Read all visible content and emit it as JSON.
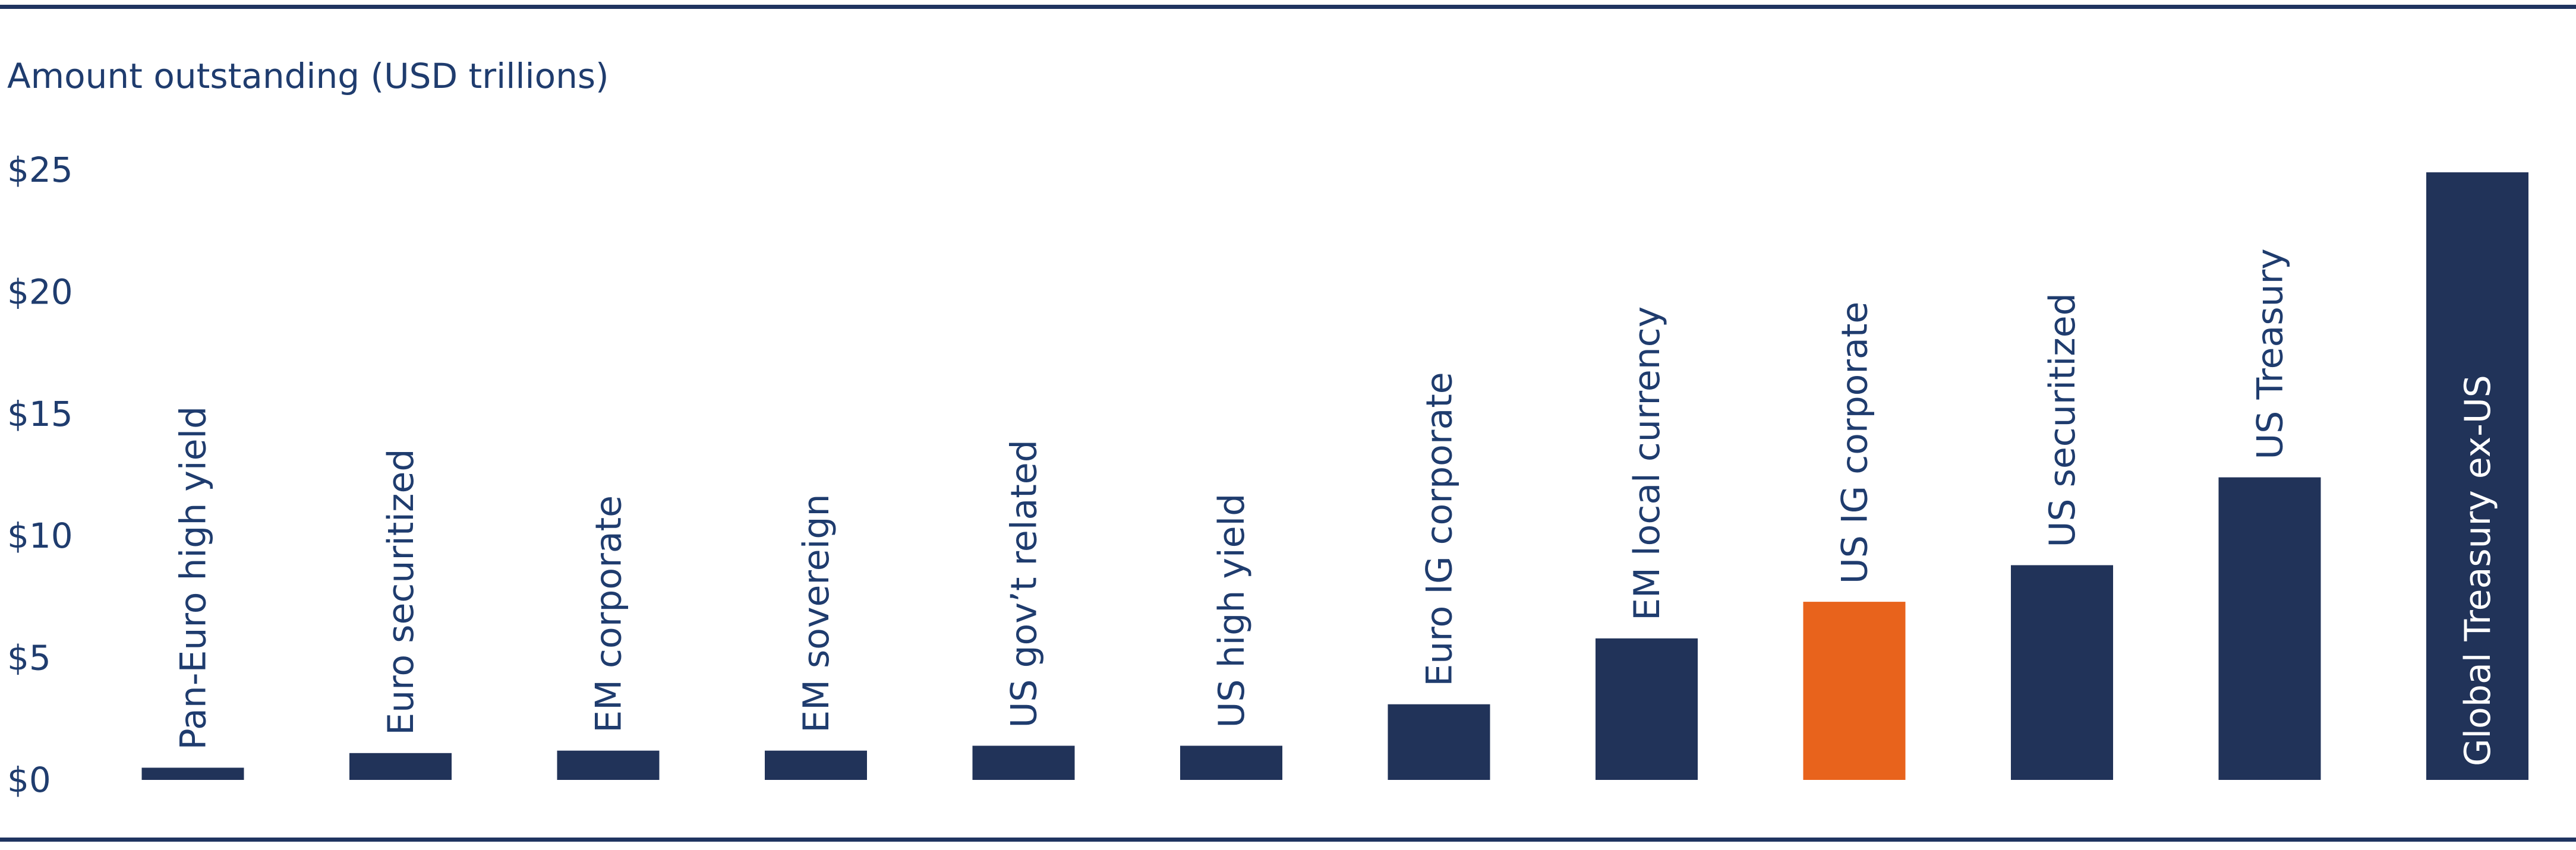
{
  "chart_data": {
    "type": "bar",
    "ylabel": "Amount outstanding (USD trillions)",
    "ylim": [
      0,
      25
    ],
    "yticks": [
      "$0",
      "$5",
      "$10",
      "$15",
      "$20",
      "$25"
    ],
    "ytick_values": [
      0,
      5,
      10,
      15,
      20,
      25
    ],
    "grid": false,
    "categories": [
      "Pan-Euro high yield",
      "Euro securitized",
      "EM corporate",
      "EM sovereign",
      "US gov’t related",
      "US high yield",
      "Euro IG corporate",
      "EM local currency",
      "US IG corporate",
      "US securitized",
      "US Treasury",
      "Global Treasury ex-US"
    ],
    "values": [
      0.5,
      1.1,
      1.2,
      1.2,
      1.4,
      1.4,
      3.1,
      5.8,
      7.3,
      8.8,
      12.4,
      24.9
    ],
    "highlight_index": 8,
    "colors": {
      "bar": "#213359",
      "highlight": "#e8631c",
      "text": "#1f3c6e",
      "rule": "#1f3460"
    }
  }
}
